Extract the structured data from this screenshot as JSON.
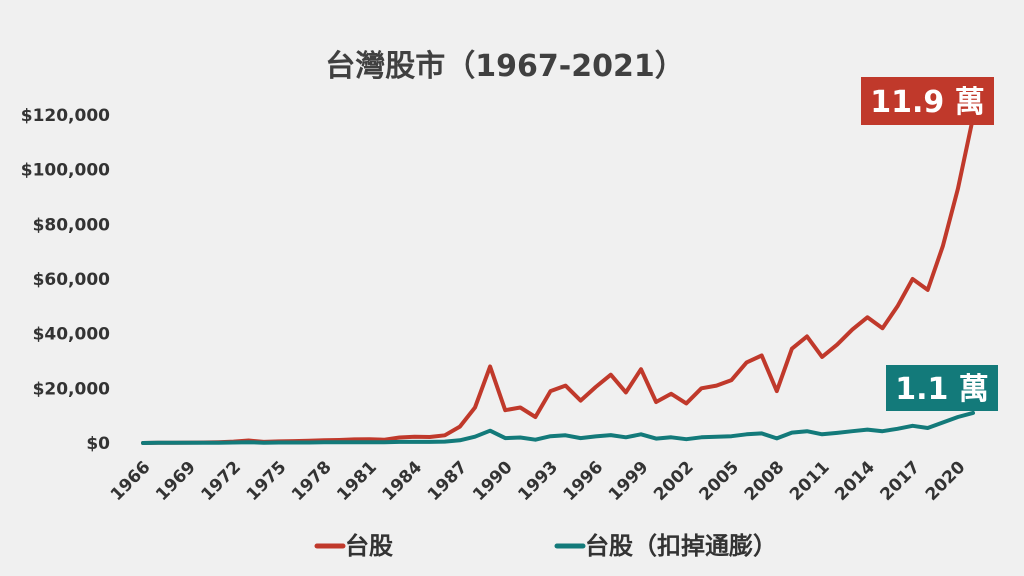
{
  "chart_data": {
    "type": "line",
    "title": "台灣股市（1967-2021）",
    "ylim": [
      0,
      120000
    ],
    "yticks": [
      0,
      20000,
      40000,
      60000,
      80000,
      100000,
      120000
    ],
    "ytick_labels": [
      "$0",
      "$20,000",
      "$40,000",
      "$60,000",
      "$80,000",
      "$100,000",
      "$120,000"
    ],
    "xlim": [
      1966,
      2021
    ],
    "xticks": [
      1966,
      1969,
      1972,
      1975,
      1978,
      1981,
      1984,
      1987,
      1990,
      1993,
      1996,
      1999,
      2002,
      2005,
      2008,
      2011,
      2014,
      2017,
      2020
    ],
    "xtick_labels": [
      "1966",
      "1969",
      "1972",
      "1975",
      "1978",
      "1981",
      "1984",
      "1987",
      "1990",
      "1993",
      "1996",
      "1999",
      "2002",
      "2005",
      "2008",
      "2011",
      "2014",
      "2017",
      "2020"
    ],
    "grid": false,
    "legend_position": "bottom",
    "series": [
      {
        "name": "台股",
        "color": "#c0392b",
        "x": [
          1966,
          1967,
          1968,
          1969,
          1970,
          1971,
          1972,
          1973,
          1974,
          1975,
          1976,
          1977,
          1978,
          1979,
          1980,
          1981,
          1982,
          1983,
          1984,
          1985,
          1986,
          1987,
          1988,
          1989,
          1990,
          1991,
          1992,
          1993,
          1994,
          1995,
          1996,
          1997,
          1998,
          1999,
          2000,
          2001,
          2002,
          2003,
          2004,
          2005,
          2006,
          2007,
          2008,
          2009,
          2010,
          2011,
          2012,
          2013,
          2014,
          2015,
          2016,
          2017,
          2018,
          2019,
          2020,
          2021
        ],
        "values": [
          0,
          100,
          100,
          150,
          200,
          300,
          500,
          900,
          400,
          600,
          700,
          800,
          1000,
          1100,
          1300,
          1400,
          1200,
          2000,
          2300,
          2200,
          2800,
          6000,
          13000,
          28000,
          12000,
          13000,
          9500,
          19000,
          21000,
          15500,
          20500,
          25000,
          18500,
          27000,
          15000,
          18000,
          14500,
          20000,
          21000,
          23000,
          29500,
          32000,
          19000,
          34500,
          39000,
          31500,
          36000,
          41500,
          46000,
          42000,
          50000,
          60000,
          56000,
          72000,
          93000,
          119000
        ]
      },
      {
        "name": "台股（扣掉通膨）",
        "color": "#137a7a",
        "x": [
          1966,
          1967,
          1968,
          1969,
          1970,
          1971,
          1972,
          1973,
          1974,
          1975,
          1976,
          1977,
          1978,
          1979,
          1980,
          1981,
          1982,
          1983,
          1984,
          1985,
          1986,
          1987,
          1988,
          1989,
          1990,
          1991,
          1992,
          1993,
          1994,
          1995,
          1996,
          1997,
          1998,
          1999,
          2000,
          2001,
          2002,
          2003,
          2004,
          2005,
          2006,
          2007,
          2008,
          2009,
          2010,
          2011,
          2012,
          2013,
          2014,
          2015,
          2016,
          2017,
          2018,
          2019,
          2020,
          2021
        ],
        "values": [
          0,
          100,
          100,
          100,
          100,
          100,
          200,
          300,
          100,
          200,
          200,
          200,
          250,
          250,
          300,
          300,
          300,
          400,
          400,
          400,
          500,
          1000,
          2300,
          4500,
          1800,
          2000,
          1200,
          2500,
          2800,
          1800,
          2400,
          2900,
          2100,
          3200,
          1600,
          2100,
          1400,
          2100,
          2300,
          2500,
          3200,
          3500,
          1700,
          3800,
          4300,
          3200,
          3700,
          4300,
          4900,
          4300,
          5200,
          6300,
          5500,
          7500,
          9500,
          11000
        ]
      }
    ],
    "annotations": [
      {
        "text": "11.9 萬",
        "series": "台股",
        "color": "#c0392b"
      },
      {
        "text": "1.1 萬",
        "series": "台股（扣掉通膨）",
        "color": "#137a7a"
      }
    ]
  }
}
